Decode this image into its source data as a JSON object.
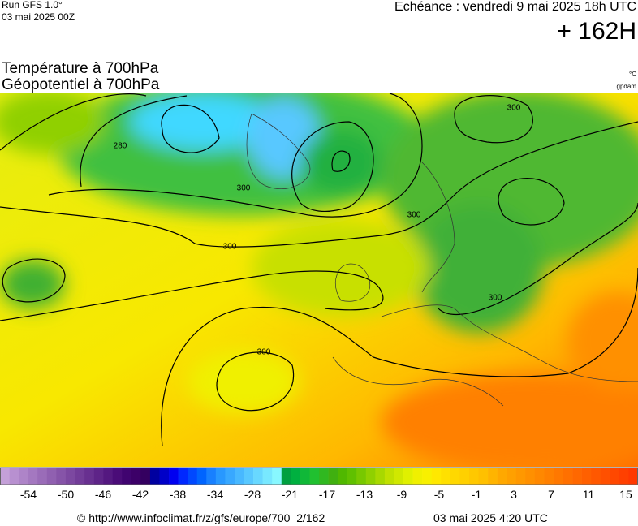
{
  "header": {
    "run": "Run GFS 1.0°",
    "date": "03 mai 2025 00Z",
    "echeance": "Echéance : vendredi 9 mai 2025 18h UTC",
    "lead": "+ 162H"
  },
  "titles": [
    "Température à 700hPa",
    "Géopotentiel à 700hPa"
  ],
  "units": [
    "°C",
    "gpdam"
  ],
  "map": {
    "contour_labels": [
      "280",
      "300",
      "300",
      "300",
      "300",
      "300",
      "300"
    ]
  },
  "colorbar": {
    "ticks": [
      -54,
      -50,
      -46,
      -42,
      -38,
      -34,
      -28,
      -21,
      -17,
      -13,
      -9,
      -5,
      -1,
      3,
      7,
      11,
      15
    ],
    "colors": [
      "#c4a0d8",
      "#b890d0",
      "#ae84c8",
      "#a478c0",
      "#9a6cb8",
      "#9060b0",
      "#8654a8",
      "#7c48a0",
      "#723c98",
      "#683090",
      "#5e2488",
      "#541880",
      "#4a0c78",
      "#400470",
      "#3c0068",
      "#340060",
      "#0000a0",
      "#0000c8",
      "#0000f0",
      "#0028ff",
      "#0048ff",
      "#0064ff",
      "#1880ff",
      "#2898ff",
      "#38a8ff",
      "#48b8ff",
      "#58c8ff",
      "#68d8ff",
      "#78e8ff",
      "#88f8ff",
      "#00a040",
      "#00b040",
      "#10b838",
      "#20c030",
      "#30b820",
      "#40b010",
      "#50b800",
      "#60c000",
      "#78c800",
      "#90d000",
      "#a8d800",
      "#c0e000",
      "#d0e800",
      "#e0f000",
      "#f0f000",
      "#f8f000",
      "#ffe800",
      "#ffe000",
      "#ffd800",
      "#ffd000",
      "#ffc800",
      "#ffc000",
      "#ffb400",
      "#ffa800",
      "#ffa000",
      "#ff9800",
      "#ff9000",
      "#ff8800",
      "#ff8000",
      "#ff7800",
      "#ff7000",
      "#ff6800",
      "#ff6000",
      "#ff5800",
      "#ff5000",
      "#ff4800",
      "#ff4000",
      "#ff3800"
    ]
  },
  "footer": {
    "source": "© http://www.infoclimat.fr/z/gfs/europe/700_2/162",
    "time": "03 mai 2025  4:20 UTC"
  }
}
